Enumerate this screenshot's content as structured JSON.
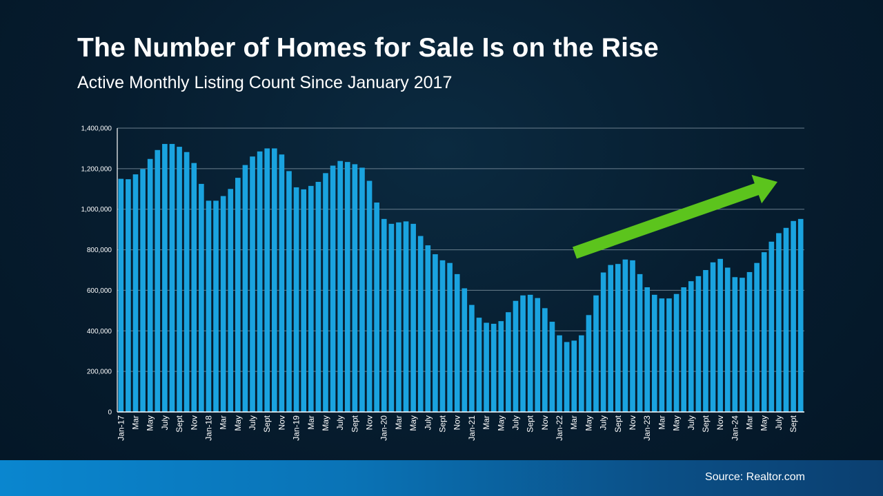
{
  "header": {
    "title": "The Number of Homes for Sale Is on the Rise",
    "subtitle": "Active Monthly Listing Count Since January 2017"
  },
  "footer": {
    "source": "Source: Realtor.com"
  },
  "colors": {
    "bar": "#1aa3df",
    "arrow": "#5cc41d",
    "grid": "#6b7f8e",
    "axis": "#ffffff"
  },
  "chart_data": {
    "type": "bar",
    "title": "The Number of Homes for Sale Is on the Rise",
    "subtitle": "Active Monthly Listing Count Since January 2017",
    "xlabel": "",
    "ylabel": "",
    "ylim": [
      0,
      1400000
    ],
    "yticks": [
      0,
      200000,
      400000,
      600000,
      800000,
      1000000,
      1200000,
      1400000
    ],
    "ytick_labels": [
      "0",
      "200,000",
      "400,000",
      "600,000",
      "800,000",
      "1,000,000",
      "1,200,000",
      "1,400,000"
    ],
    "grid": "horizontal",
    "legend": "none",
    "annotation": "upward trend arrow",
    "categories": [
      "Jan-17",
      "",
      "Mar",
      "",
      "May",
      "",
      "July",
      "",
      "Sept",
      "",
      "Nov",
      "",
      "Jan-18",
      "",
      "Mar",
      "",
      "May",
      "",
      "July",
      "",
      "Sept",
      "",
      "Nov",
      "",
      "Jan-19",
      "",
      "Mar",
      "",
      "May",
      "",
      "July",
      "",
      "Sept",
      "",
      "Nov",
      "",
      "Jan-20",
      "",
      "Mar",
      "",
      "May",
      "",
      "July",
      "",
      "Sept",
      "",
      "Nov",
      "",
      "Jan-21",
      "",
      "Mar",
      "",
      "May",
      "",
      "July",
      "",
      "Sept",
      "",
      "Nov",
      "",
      "Jan-22",
      "",
      "Mar",
      "",
      "May",
      "",
      "July",
      "",
      "Sept",
      "",
      "Nov",
      "",
      "Jan-23",
      "",
      "Mar",
      "",
      "May",
      "",
      "July",
      "",
      "Sept",
      "",
      "Nov",
      "",
      "Jan-24",
      "",
      "Mar",
      "",
      "May",
      "",
      "July",
      "",
      "Sept",
      ""
    ],
    "values": [
      1150000,
      1148000,
      1172000,
      1198000,
      1248000,
      1292000,
      1322000,
      1322000,
      1308000,
      1282000,
      1228000,
      1125000,
      1042000,
      1042000,
      1065000,
      1100000,
      1155000,
      1218000,
      1260000,
      1285000,
      1300000,
      1300000,
      1270000,
      1188000,
      1108000,
      1098000,
      1115000,
      1135000,
      1178000,
      1215000,
      1238000,
      1233000,
      1222000,
      1205000,
      1140000,
      1033000,
      952000,
      928000,
      935000,
      940000,
      928000,
      868000,
      822000,
      778000,
      748000,
      735000,
      680000,
      610000,
      528000,
      465000,
      440000,
      435000,
      448000,
      492000,
      548000,
      575000,
      578000,
      562000,
      512000,
      445000,
      378000,
      345000,
      352000,
      378000,
      478000,
      575000,
      688000,
      725000,
      730000,
      752000,
      748000,
      680000,
      615000,
      578000,
      560000,
      560000,
      582000,
      615000,
      645000,
      670000,
      700000,
      738000,
      755000,
      712000,
      665000,
      662000,
      690000,
      735000,
      788000,
      840000,
      882000,
      908000,
      942000,
      952000
    ]
  }
}
